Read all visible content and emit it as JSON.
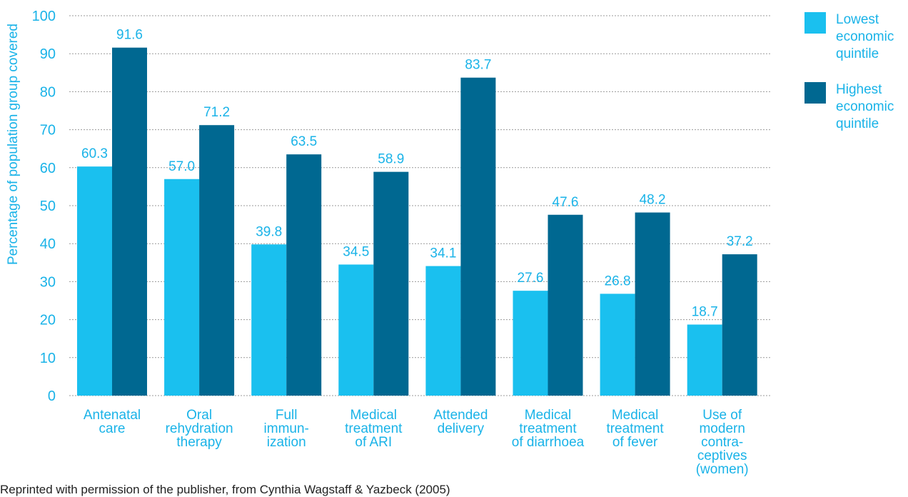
{
  "chart_data": {
    "type": "bar",
    "ylabel": "Percentage of population group covered",
    "ylim": [
      0,
      100
    ],
    "yticks": [
      0,
      10,
      20,
      30,
      40,
      50,
      60,
      70,
      80,
      90,
      100
    ],
    "grid": true,
    "legend_position": "right",
    "categories": [
      [
        "Antenatal",
        "care"
      ],
      [
        "Oral",
        "rehydration",
        "therapy"
      ],
      [
        "Full",
        "immun-",
        "ization"
      ],
      [
        "Medical",
        "treatment",
        "of ARI"
      ],
      [
        "Attended",
        "delivery"
      ],
      [
        "Medical",
        "treatment",
        "of diarrhoea"
      ],
      [
        "Medical",
        "treatment",
        "of fever"
      ],
      [
        "Use of",
        "modern",
        "contra-",
        "ceptives",
        "(women)"
      ]
    ],
    "series": [
      {
        "name": "Lowest economic quintile",
        "color": "#1ac0ef",
        "values": [
          60.3,
          57.0,
          39.8,
          34.5,
          34.1,
          27.6,
          26.8,
          18.7
        ],
        "labels": [
          "60.3",
          "57.0",
          "39.8",
          "34.5",
          "34.1",
          "27.6",
          "26.8",
          "18.7"
        ]
      },
      {
        "name": "Highest economic quintile",
        "color": "#006891",
        "values": [
          91.6,
          71.2,
          63.5,
          58.9,
          83.7,
          47.6,
          48.2,
          37.2
        ],
        "labels": [
          "91.6",
          "71.2",
          "63.5",
          "58.9",
          "83.7",
          "47.6",
          "48.2",
          "37.2"
        ]
      }
    ]
  },
  "legend": {
    "items": [
      {
        "lines": [
          "Lowest",
          "economic",
          "quintile"
        ],
        "color": "#1ac0ef"
      },
      {
        "lines": [
          "Highest",
          "economic",
          "quintile"
        ],
        "color": "#006891"
      }
    ]
  },
  "source_text": "Reprinted with permission of the publisher, from Cynthia Wagstaff & Yazbeck (2005)"
}
